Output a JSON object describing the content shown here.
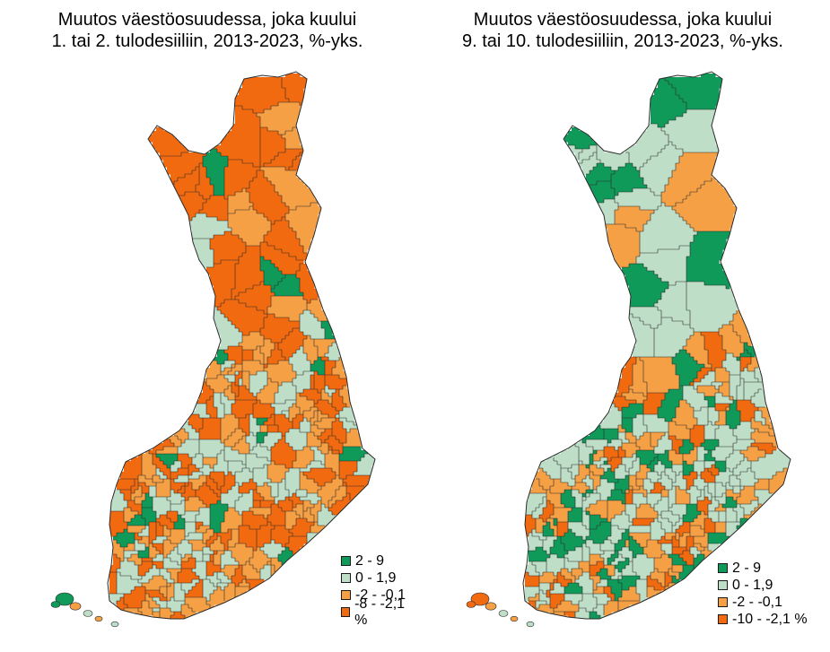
{
  "colors": {
    "dark_green": "#0f9a5a",
    "light_green": "#bfdec7",
    "light_orange": "#f6a045",
    "dark_orange": "#f26a10",
    "border": "#2a2a2a"
  },
  "maps": [
    {
      "title_line1": "Muutos väestöosuudessa, joka kuului",
      "title_line2": "1. tai 2. tulodesiiliin, 2013-2023, %-yks.",
      "legend": [
        {
          "label": "2 - 9",
          "color_key": "dark_green"
        },
        {
          "label": "0 - 1,9",
          "color_key": "light_green"
        },
        {
          "label": "-2 - -0,1",
          "color_key": "light_orange"
        },
        {
          "label": "-8 - -2,1 %",
          "color_key": "dark_orange"
        }
      ]
    },
    {
      "title_line1": "Muutos väestöosuudessa, joka kuului",
      "title_line2": "9. tai 10. tulodesiiliin, 2013-2023, %-yks.",
      "legend": [
        {
          "label": "2 - 9",
          "color_key": "dark_green"
        },
        {
          "label": "0 - 1,9",
          "color_key": "light_green"
        },
        {
          "label": "-2 - -0,1",
          "color_key": "light_orange"
        },
        {
          "label": "-10 - -2,1 %",
          "color_key": "dark_orange"
        }
      ]
    }
  ]
}
